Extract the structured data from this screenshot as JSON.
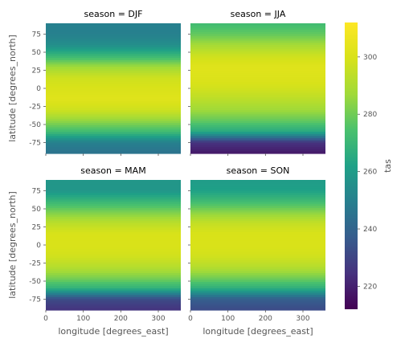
{
  "chart_data": {
    "type": "heatmap",
    "colormap": "viridis",
    "variable": "tas",
    "xlabel": "longitude [degrees_east]",
    "ylabel": "latitude [degrees_north]",
    "xlim": [
      0,
      360
    ],
    "ylim": [
      -90,
      90
    ],
    "x_ticks": [
      0,
      100,
      200,
      300
    ],
    "y_ticks": [
      75,
      50,
      25,
      0,
      -25,
      -50,
      -75
    ],
    "colorbar": {
      "label": "tas",
      "range": [
        212,
        312
      ],
      "ticks": [
        220,
        240,
        260,
        280,
        300
      ]
    },
    "panels": [
      {
        "title": "season = DJF",
        "season": "DJF",
        "zonal_mean_profile": [
          {
            "lat": 90,
            "value": 250
          },
          {
            "lat": 75,
            "value": 250
          },
          {
            "lat": 60,
            "value": 255
          },
          {
            "lat": 45,
            "value": 270
          },
          {
            "lat": 30,
            "value": 287
          },
          {
            "lat": 15,
            "value": 297
          },
          {
            "lat": 0,
            "value": 300
          },
          {
            "lat": -15,
            "value": 302
          },
          {
            "lat": -30,
            "value": 297
          },
          {
            "lat": -45,
            "value": 285
          },
          {
            "lat": -60,
            "value": 272
          },
          {
            "lat": -75,
            "value": 250
          },
          {
            "lat": -90,
            "value": 245
          }
        ]
      },
      {
        "title": "season = JJA",
        "season": "JJA",
        "zonal_mean_profile": [
          {
            "lat": 90,
            "value": 272
          },
          {
            "lat": 75,
            "value": 278
          },
          {
            "lat": 60,
            "value": 288
          },
          {
            "lat": 45,
            "value": 297
          },
          {
            "lat": 30,
            "value": 302
          },
          {
            "lat": 15,
            "value": 301
          },
          {
            "lat": 0,
            "value": 298
          },
          {
            "lat": -15,
            "value": 293
          },
          {
            "lat": -30,
            "value": 287
          },
          {
            "lat": -45,
            "value": 278
          },
          {
            "lat": -60,
            "value": 265
          },
          {
            "lat": -75,
            "value": 225
          },
          {
            "lat": -90,
            "value": 218
          }
        ]
      },
      {
        "title": "season = MAM",
        "season": "MAM",
        "zonal_mean_profile": [
          {
            "lat": 90,
            "value": 258
          },
          {
            "lat": 75,
            "value": 258
          },
          {
            "lat": 60,
            "value": 270
          },
          {
            "lat": 45,
            "value": 282
          },
          {
            "lat": 30,
            "value": 293
          },
          {
            "lat": 15,
            "value": 300
          },
          {
            "lat": 0,
            "value": 300
          },
          {
            "lat": -15,
            "value": 298
          },
          {
            "lat": -30,
            "value": 292
          },
          {
            "lat": -45,
            "value": 282
          },
          {
            "lat": -60,
            "value": 268
          },
          {
            "lat": -75,
            "value": 232
          },
          {
            "lat": -90,
            "value": 225
          }
        ]
      },
      {
        "title": "season = SON",
        "season": "SON",
        "zonal_mean_profile": [
          {
            "lat": 90,
            "value": 260
          },
          {
            "lat": 75,
            "value": 262
          },
          {
            "lat": 60,
            "value": 272
          },
          {
            "lat": 45,
            "value": 284
          },
          {
            "lat": 30,
            "value": 295
          },
          {
            "lat": 15,
            "value": 300
          },
          {
            "lat": 0,
            "value": 300
          },
          {
            "lat": -15,
            "value": 298
          },
          {
            "lat": -30,
            "value": 292
          },
          {
            "lat": -45,
            "value": 281
          },
          {
            "lat": -60,
            "value": 267
          },
          {
            "lat": -75,
            "value": 238
          },
          {
            "lat": -90,
            "value": 232
          }
        ]
      }
    ]
  }
}
